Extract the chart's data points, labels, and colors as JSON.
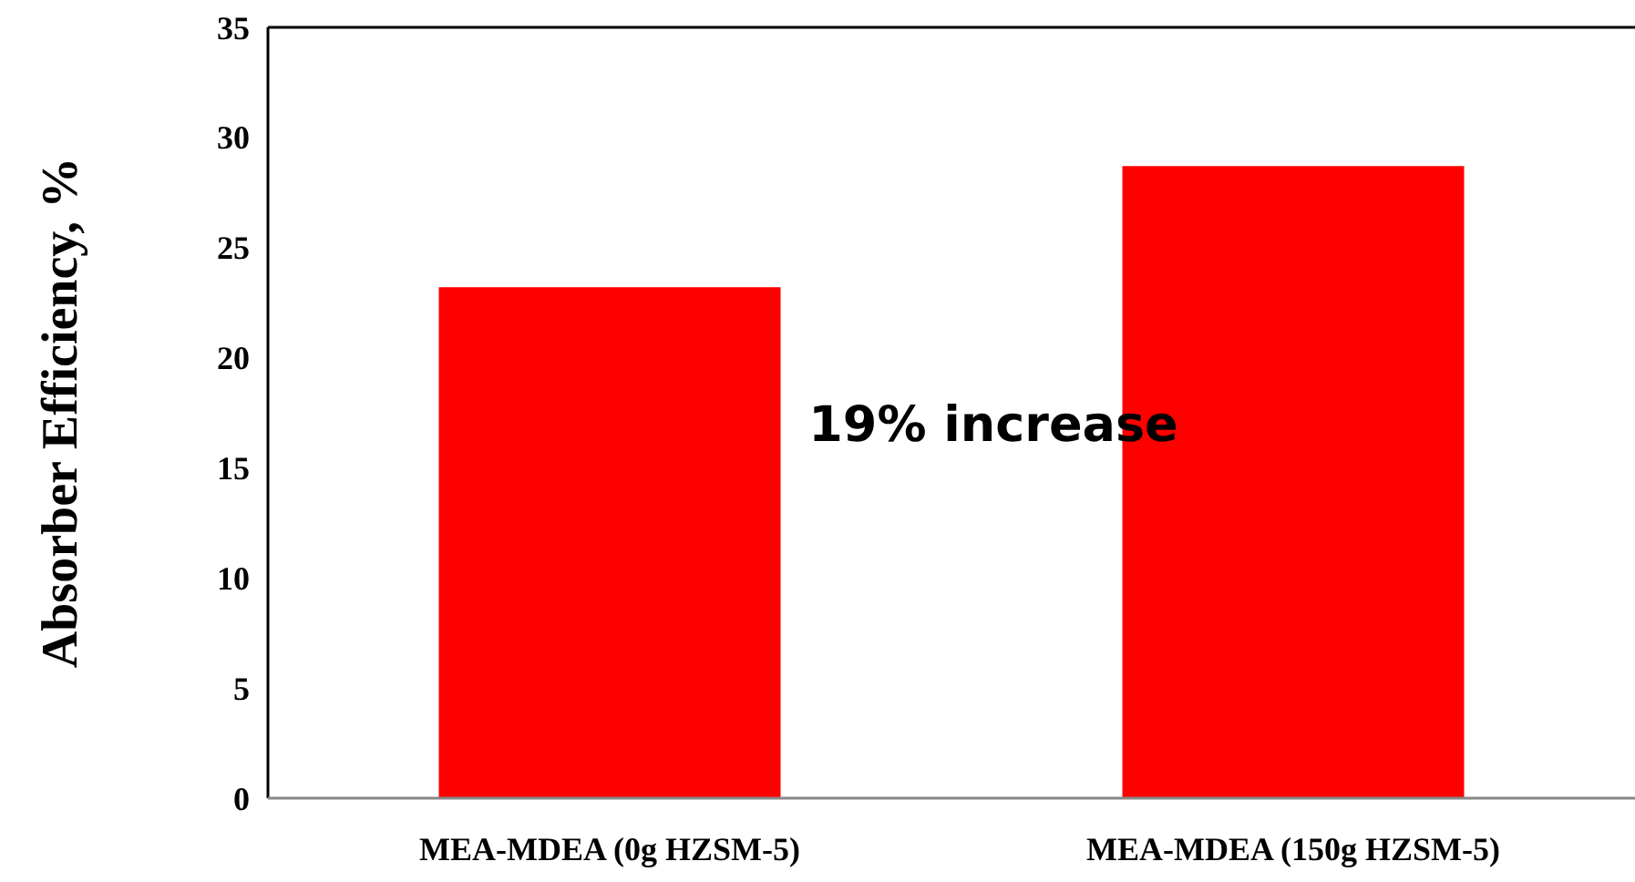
{
  "chart_data": {
    "type": "bar",
    "ylabel": "Absorber Efficiency, %",
    "categories": [
      "MEA-MDEA (0g HZSM-5)",
      "MEA-MDEA (150g HZSM-5)"
    ],
    "values": [
      23.2,
      28.7
    ],
    "color": "#ff0000",
    "ylim": [
      0,
      35
    ],
    "yticks": [
      0,
      5,
      10,
      15,
      20,
      25,
      30,
      35
    ],
    "annotations": [
      "19% increase"
    ],
    "grid": false
  }
}
